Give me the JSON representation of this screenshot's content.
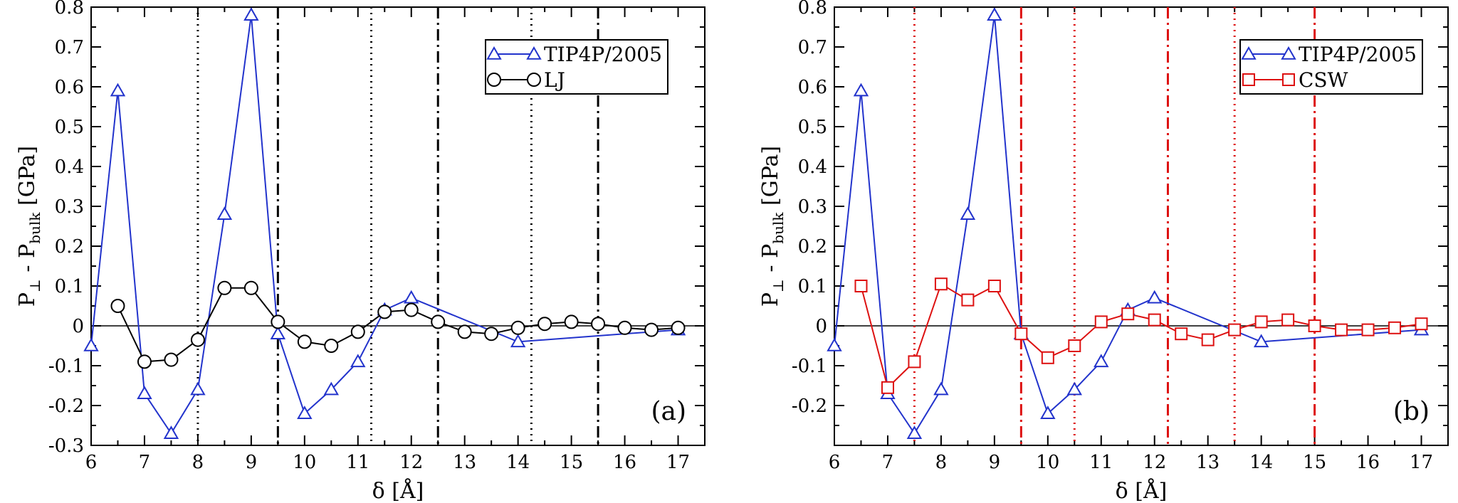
{
  "figure": {
    "panels": [
      "a",
      "b"
    ]
  },
  "chart_data": [
    {
      "type": "line",
      "panel_label": "(a)",
      "xlabel": "δ  [Å]",
      "ylabel": {
        "main": "P",
        "sub1": "⊥",
        "mid": " - P",
        "sub2": "bulk",
        "unit": "  [GPa]"
      },
      "xlim": [
        6,
        17.5
      ],
      "ylim": [
        -0.3,
        0.8
      ],
      "xticks": [
        6,
        7,
        8,
        9,
        10,
        11,
        12,
        13,
        14,
        15,
        16,
        17
      ],
      "yticks": [
        -0.3,
        -0.2,
        -0.1,
        0,
        0.1,
        0.2,
        0.3,
        0.4,
        0.5,
        0.6,
        0.7,
        0.8
      ],
      "ytick_labels": [
        "-0.3",
        "-0.2",
        "-0.1",
        "0",
        "0.1",
        "0.2",
        "0.3",
        "0.4",
        "0.5",
        "0.6",
        "0.7",
        "0.8"
      ],
      "zero_line": true,
      "legend_position": "top-right",
      "vlines": [
        {
          "x": 8.0,
          "style": "dotted",
          "color": "#000000"
        },
        {
          "x": 9.5,
          "style": "dashdot",
          "color": "#000000"
        },
        {
          "x": 11.25,
          "style": "dotted",
          "color": "#000000"
        },
        {
          "x": 12.5,
          "style": "dashdot",
          "color": "#000000"
        },
        {
          "x": 14.25,
          "style": "dotted",
          "color": "#000000"
        },
        {
          "x": 15.5,
          "style": "dashdot",
          "color": "#000000"
        }
      ],
      "series": [
        {
          "name": "TIP4P/2005",
          "color": "#2233cc",
          "marker": "triangle",
          "x": [
            6,
            6.5,
            7,
            7.5,
            8,
            8.5,
            9,
            9.5,
            10,
            10.5,
            11,
            11.5,
            12,
            14,
            17
          ],
          "y": [
            -0.05,
            0.59,
            -0.17,
            -0.27,
            -0.16,
            0.28,
            0.78,
            -0.02,
            -0.22,
            -0.16,
            -0.09,
            0.04,
            0.07,
            -0.04,
            -0.01
          ]
        },
        {
          "name": "LJ",
          "color": "#000000",
          "marker": "circle",
          "x": [
            6.5,
            7,
            7.5,
            8,
            8.5,
            9,
            9.5,
            10,
            10.5,
            11,
            11.5,
            12,
            12.5,
            13,
            13.5,
            14,
            14.5,
            15,
            15.5,
            16,
            16.5,
            17
          ],
          "y": [
            0.05,
            -0.09,
            -0.085,
            -0.035,
            0.095,
            0.095,
            0.01,
            -0.04,
            -0.05,
            -0.015,
            0.035,
            0.04,
            0.01,
            -0.015,
            -0.02,
            -0.005,
            0.005,
            0.01,
            0.005,
            -0.005,
            -0.01,
            -0.005
          ]
        }
      ]
    },
    {
      "type": "line",
      "panel_label": "(b)",
      "xlabel": "δ  [Å]",
      "ylabel": {
        "main": "P",
        "sub1": "⊥",
        "mid": " - P",
        "sub2": "bulk",
        "unit": "  [GPa]"
      },
      "xlim": [
        6,
        17.5
      ],
      "ylim": [
        -0.3,
        0.8
      ],
      "xticks": [
        6,
        7,
        8,
        9,
        10,
        11,
        12,
        13,
        14,
        15,
        16,
        17
      ],
      "yticks": [
        -0.2,
        -0.1,
        0,
        0.1,
        0.2,
        0.3,
        0.4,
        0.5,
        0.6,
        0.7,
        0.8
      ],
      "ytick_labels": [
        "-0.2",
        "-0.1",
        "0",
        "0.1",
        "0.2",
        "0.3",
        "0.4",
        "0.5",
        "0.6",
        "0.7",
        "0.8"
      ],
      "zero_line": true,
      "legend_position": "top-right",
      "vlines": [
        {
          "x": 7.5,
          "style": "dotted",
          "color": "#dd1111"
        },
        {
          "x": 9.5,
          "style": "dashdot",
          "color": "#dd1111"
        },
        {
          "x": 10.5,
          "style": "dotted",
          "color": "#dd1111"
        },
        {
          "x": 12.25,
          "style": "dashdot",
          "color": "#dd1111"
        },
        {
          "x": 13.5,
          "style": "dotted",
          "color": "#dd1111"
        },
        {
          "x": 15.0,
          "style": "dashdot",
          "color": "#dd1111"
        }
      ],
      "series": [
        {
          "name": "TIP4P/2005",
          "color": "#2233cc",
          "marker": "triangle",
          "x": [
            6,
            6.5,
            7,
            7.5,
            8,
            8.5,
            9,
            9.5,
            10,
            10.5,
            11,
            11.5,
            12,
            14,
            17
          ],
          "y": [
            -0.05,
            0.59,
            -0.17,
            -0.27,
            -0.16,
            0.28,
            0.78,
            -0.02,
            -0.22,
            -0.16,
            -0.09,
            0.04,
            0.07,
            -0.04,
            -0.01
          ]
        },
        {
          "name": "CSW",
          "color": "#dd1111",
          "marker": "square",
          "x": [
            6.5,
            7,
            7.5,
            8,
            8.5,
            9,
            9.5,
            10,
            10.5,
            11,
            11.5,
            12,
            12.5,
            13,
            13.5,
            14,
            14.5,
            15,
            15.5,
            16,
            16.5,
            17
          ],
          "y": [
            0.1,
            -0.155,
            -0.09,
            0.105,
            0.065,
            0.1,
            -0.02,
            -0.08,
            -0.05,
            0.01,
            0.03,
            0.015,
            -0.02,
            -0.035,
            -0.01,
            0.01,
            0.015,
            0.0,
            -0.01,
            -0.01,
            -0.005,
            0.005
          ]
        }
      ]
    }
  ]
}
